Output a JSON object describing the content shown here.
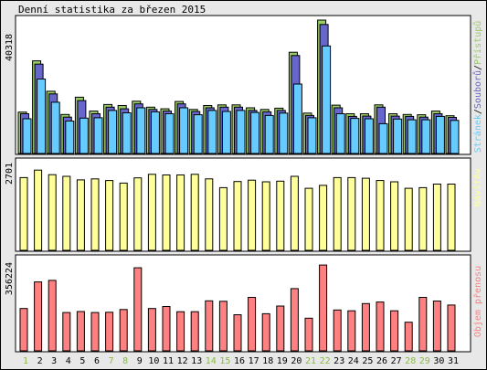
{
  "title": "Denní statistika za březen 2015",
  "colors": {
    "hits": "#99cc66",
    "files": "#6666cc",
    "pages": "#66ccff",
    "visits": "#ffff99",
    "kbytes": "#ff8080",
    "weekend_label": "#88bb44",
    "weekday_label": "#000000",
    "background": "#e8e8e8",
    "panel": "#ffffff"
  },
  "legend": {
    "pages": "Stránek",
    "files": "Souborů",
    "hits": "Přístupů",
    "sep1": "/",
    "sep2": "/",
    "visits": "Návštěv",
    "kbytes": "Objem přenosu"
  },
  "chart_data": [
    {
      "type": "bar",
      "name": "hits-files-pages",
      "categories": [
        "1",
        "2",
        "3",
        "4",
        "5",
        "6",
        "7",
        "8",
        "9",
        "10",
        "11",
        "12",
        "13",
        "14",
        "15",
        "16",
        "17",
        "18",
        "19",
        "20",
        "21",
        "22",
        "23",
        "24",
        "25",
        "26",
        "27",
        "28",
        "29",
        "30",
        "31"
      ],
      "ymax_label": "40318",
      "ylim": [
        0,
        40318
      ],
      "series": [
        {
          "name": "Přístupů",
          "key": "hits",
          "values": [
            12500,
            28000,
            18800,
            11800,
            17000,
            12800,
            14800,
            14500,
            15800,
            14000,
            13500,
            15700,
            13300,
            14500,
            14700,
            14700,
            13800,
            13300,
            13700,
            30600,
            12200,
            40318,
            14600,
            12000,
            12000,
            14700,
            12000,
            11800,
            11700,
            12800,
            11400
          ]
        },
        {
          "name": "Souborů",
          "key": "files",
          "values": [
            12000,
            27000,
            18000,
            11000,
            16000,
            12000,
            14000,
            13500,
            15000,
            13300,
            12800,
            15000,
            12700,
            13800,
            14000,
            14000,
            13000,
            12600,
            13000,
            29600,
            11500,
            39000,
            13800,
            11200,
            11300,
            14000,
            11300,
            11200,
            11000,
            12000,
            10900
          ]
        },
        {
          "name": "Stránek",
          "key": "pages",
          "values": [
            10500,
            22500,
            15500,
            9800,
            10700,
            10800,
            13000,
            12300,
            13800,
            12600,
            12000,
            13800,
            11700,
            13000,
            12700,
            13000,
            12400,
            11500,
            12200,
            21000,
            10800,
            32500,
            12000,
            10600,
            10500,
            9000,
            10400,
            10200,
            10200,
            11200,
            10000
          ]
        }
      ]
    },
    {
      "type": "bar",
      "name": "visits",
      "categories": [
        "1",
        "2",
        "3",
        "4",
        "5",
        "6",
        "7",
        "8",
        "9",
        "10",
        "11",
        "12",
        "13",
        "14",
        "15",
        "16",
        "17",
        "18",
        "19",
        "20",
        "21",
        "22",
        "23",
        "24",
        "25",
        "26",
        "27",
        "28",
        "29",
        "30",
        "31"
      ],
      "ymax_label": "2701",
      "ylim": [
        0,
        2701
      ],
      "series": [
        {
          "name": "Návštěv",
          "key": "visits",
          "values": [
            2240,
            2470,
            2330,
            2280,
            2170,
            2200,
            2150,
            2070,
            2230,
            2340,
            2320,
            2320,
            2340,
            2200,
            1930,
            2120,
            2160,
            2110,
            2130,
            2280,
            1910,
            2000,
            2240,
            2240,
            2220,
            2150,
            2110,
            1910,
            1930,
            2040,
            2040
          ]
        }
      ]
    },
    {
      "type": "bar",
      "name": "kbytes",
      "categories": [
        "1",
        "2",
        "3",
        "4",
        "5",
        "6",
        "7",
        "8",
        "9",
        "10",
        "11",
        "12",
        "13",
        "14",
        "15",
        "16",
        "17",
        "18",
        "19",
        "20",
        "21",
        "22",
        "23",
        "24",
        "25",
        "26",
        "27",
        "28",
        "29",
        "30",
        "31"
      ],
      "ymax_label": "356224",
      "ylim": [
        0,
        356224
      ],
      "series": [
        {
          "name": "Objem přenosu",
          "key": "kbytes",
          "values": [
            170000,
            277000,
            283000,
            154000,
            158000,
            154000,
            155000,
            166000,
            334000,
            170000,
            178000,
            157000,
            157000,
            201000,
            199000,
            145000,
            215000,
            149000,
            180000,
            250000,
            131000,
            345000,
            164000,
            161000,
            190000,
            196000,
            161000,
            115000,
            215000,
            200000,
            184000
          ]
        }
      ]
    }
  ],
  "weekend_days": [
    "1",
    "7",
    "8",
    "14",
    "15",
    "21",
    "22",
    "28",
    "29"
  ]
}
